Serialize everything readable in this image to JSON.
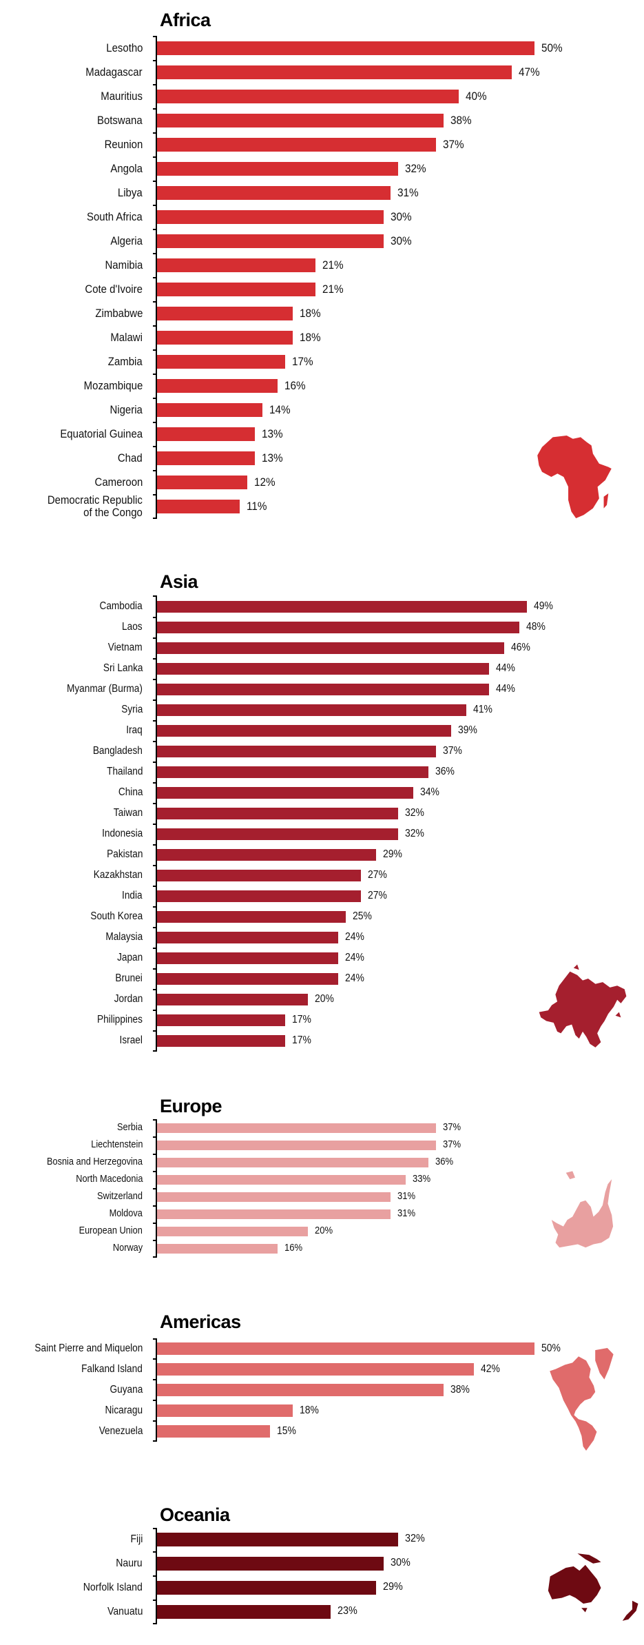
{
  "chart_data": [
    {
      "type": "bar",
      "orientation": "horizontal",
      "title": "Africa",
      "color": "#d62e32",
      "categories": [
        "Lesotho",
        "Madagascar",
        "Mauritius",
        "Botswana",
        "Reunion",
        "Angola",
        "Libya",
        "South Africa",
        "Algeria",
        "Namibia",
        "Cote d'Ivoire",
        "Zimbabwe",
        "Malawi",
        "Zambia",
        "Mozambique",
        "Nigeria",
        "Equatorial Guinea",
        "Chad",
        "Cameroon",
        "Democratic Republic of the Congo"
      ],
      "category_lines": [
        [
          "Lesotho"
        ],
        [
          "Madagascar"
        ],
        [
          "Mauritius"
        ],
        [
          "Botswana"
        ],
        [
          "Reunion"
        ],
        [
          "Angola"
        ],
        [
          "Libya"
        ],
        [
          "South Africa"
        ],
        [
          "Algeria"
        ],
        [
          "Namibia"
        ],
        [
          "Cote d'Ivoire"
        ],
        [
          "Zimbabwe"
        ],
        [
          "Malawi"
        ],
        [
          "Zambia"
        ],
        [
          "Mozambique"
        ],
        [
          "Nigeria"
        ],
        [
          "Equatorial Guinea"
        ],
        [
          "Chad"
        ],
        [
          "Cameroon"
        ],
        [
          "Democratic Republic",
          "of the Congo"
        ]
      ],
      "values": [
        50,
        47,
        40,
        38,
        37,
        32,
        31,
        30,
        30,
        21,
        21,
        18,
        18,
        17,
        16,
        14,
        13,
        13,
        12,
        11
      ],
      "value_labels": [
        "50%",
        "47%",
        "40%",
        "38%",
        "37%",
        "32%",
        "31%",
        "30%",
        "30%",
        "21%",
        "21%",
        "18%",
        "18%",
        "17%",
        "16%",
        "14%",
        "13%",
        "13%",
        "12%",
        "11%"
      ],
      "unit": "%",
      "xlim": [
        0,
        50
      ],
      "grid": false,
      "map_icon": "africa-map-icon"
    },
    {
      "type": "bar",
      "orientation": "horizontal",
      "title": "Asia",
      "color": "#a51f2e",
      "categories": [
        "Cambodia",
        "Laos",
        "Vietnam",
        "Sri Lanka",
        "Myanmar (Burma)",
        "Syria",
        "Iraq",
        "Bangladesh",
        "Thailand",
        "China",
        "Taiwan",
        "Indonesia",
        "Pakistan",
        "Kazakhstan",
        "India",
        "South Korea",
        "Malaysia",
        "Japan",
        "Brunei",
        "Jordan",
        "Philippines",
        "Israel"
      ],
      "values": [
        49,
        48,
        46,
        44,
        44,
        41,
        39,
        37,
        36,
        34,
        32,
        32,
        29,
        27,
        27,
        25,
        24,
        24,
        24,
        20,
        17,
        17
      ],
      "value_labels": [
        "49%",
        "48%",
        "46%",
        "44%",
        "44%",
        "41%",
        "39%",
        "37%",
        "36%",
        "34%",
        "32%",
        "32%",
        "29%",
        "27%",
        "27%",
        "25%",
        "24%",
        "24%",
        "24%",
        "20%",
        "17%",
        "17%"
      ],
      "unit": "%",
      "xlim": [
        0,
        50
      ],
      "grid": false,
      "map_icon": "asia-map-icon"
    },
    {
      "type": "bar",
      "orientation": "horizontal",
      "title": "Europe",
      "color": "#e8a0a0",
      "categories": [
        "Serbia",
        "Liechtenstein",
        "Bosnia and Herzegovina",
        "North Macedonia",
        "Switzerland",
        "Moldova",
        "European Union",
        "Norway"
      ],
      "values": [
        37,
        37,
        36,
        33,
        31,
        31,
        20,
        16
      ],
      "value_labels": [
        "37%",
        "37%",
        "36%",
        "33%",
        "31%",
        "31%",
        "20%",
        "16%"
      ],
      "unit": "%",
      "xlim": [
        0,
        50
      ],
      "grid": false,
      "map_icon": "europe-map-icon"
    },
    {
      "type": "bar",
      "orientation": "horizontal",
      "title": "Americas",
      "color": "#e06b6b",
      "categories": [
        "Saint Pierre and Miquelon",
        "Falkand Island",
        "Guyana",
        "Nicaragu",
        "Venezuela"
      ],
      "values": [
        50,
        42,
        38,
        18,
        15
      ],
      "value_labels": [
        "50%",
        "42%",
        "38%",
        "18%",
        "15%"
      ],
      "unit": "%",
      "xlim": [
        0,
        50
      ],
      "grid": false,
      "map_icon": "americas-map-icon"
    },
    {
      "type": "bar",
      "orientation": "horizontal",
      "title": "Oceania",
      "color": "#6e0a12",
      "categories": [
        "Fiji",
        "Nauru",
        "Norfolk Island",
        "Vanuatu"
      ],
      "values": [
        32,
        30,
        29,
        23
      ],
      "value_labels": [
        "32%",
        "30%",
        "29%",
        "23%"
      ],
      "unit": "%",
      "xlim": [
        0,
        50
      ],
      "grid": false,
      "map_icon": "oceania-map-icon"
    }
  ]
}
